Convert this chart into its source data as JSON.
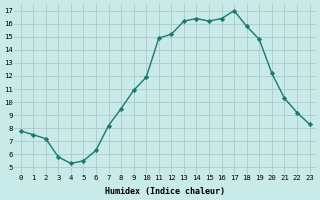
{
  "x": [
    0,
    1,
    2,
    3,
    4,
    5,
    6,
    7,
    8,
    9,
    10,
    11,
    12,
    13,
    14,
    15,
    16,
    17,
    18,
    19,
    20,
    21,
    22,
    23
  ],
  "y": [
    7.8,
    7.5,
    7.2,
    5.8,
    5.3,
    5.5,
    6.3,
    8.2,
    9.5,
    10.9,
    11.9,
    14.9,
    15.2,
    16.2,
    16.4,
    16.2,
    16.4,
    17.0,
    15.8,
    14.8,
    12.2,
    10.3,
    9.2,
    8.3
  ],
  "xlabel": "Humidex (Indice chaleur)",
  "xlim": [
    -0.5,
    23.5
  ],
  "ylim": [
    4.5,
    17.5
  ],
  "yticks": [
    5,
    6,
    7,
    8,
    9,
    10,
    11,
    12,
    13,
    14,
    15,
    16,
    17
  ],
  "xticks": [
    0,
    1,
    2,
    3,
    4,
    5,
    6,
    7,
    8,
    9,
    10,
    11,
    12,
    13,
    14,
    15,
    16,
    17,
    18,
    19,
    20,
    21,
    22,
    23
  ],
  "line_color": "#1a7a6e",
  "marker_color": "#1a7a6e",
  "bg_color": "#c8eae8",
  "grid_color": "#b0c8c6"
}
